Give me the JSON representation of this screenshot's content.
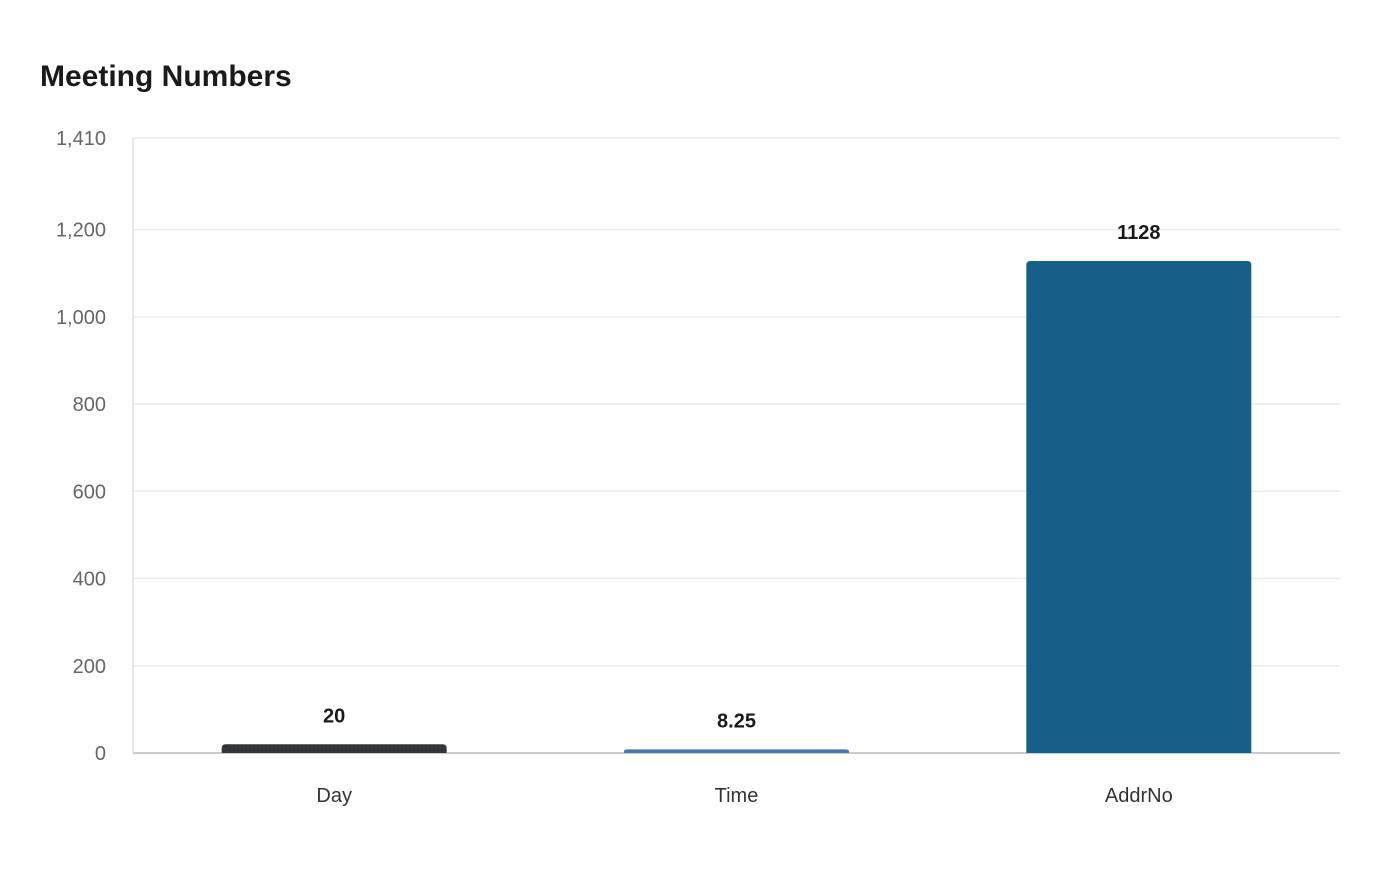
{
  "chart_data": {
    "type": "bar",
    "title": "Meeting Numbers",
    "categories": [
      "Day",
      "Time",
      "AddrNo"
    ],
    "values": [
      20,
      8.25,
      1128
    ],
    "value_labels": [
      "20",
      "8.25",
      "1128"
    ],
    "colors": [
      "#34383c",
      "#4a77aa",
      "#175f88"
    ],
    "xlabel": "",
    "ylabel": "",
    "ylim": [
      0,
      1410
    ],
    "yticks": [
      0,
      200,
      400,
      600,
      800,
      1000,
      1200,
      1410
    ],
    "ytick_labels": [
      "0",
      "200",
      "400",
      "600",
      "800",
      "1,000",
      "1,200",
      "1,410"
    ],
    "grid": true,
    "legend": "none"
  }
}
